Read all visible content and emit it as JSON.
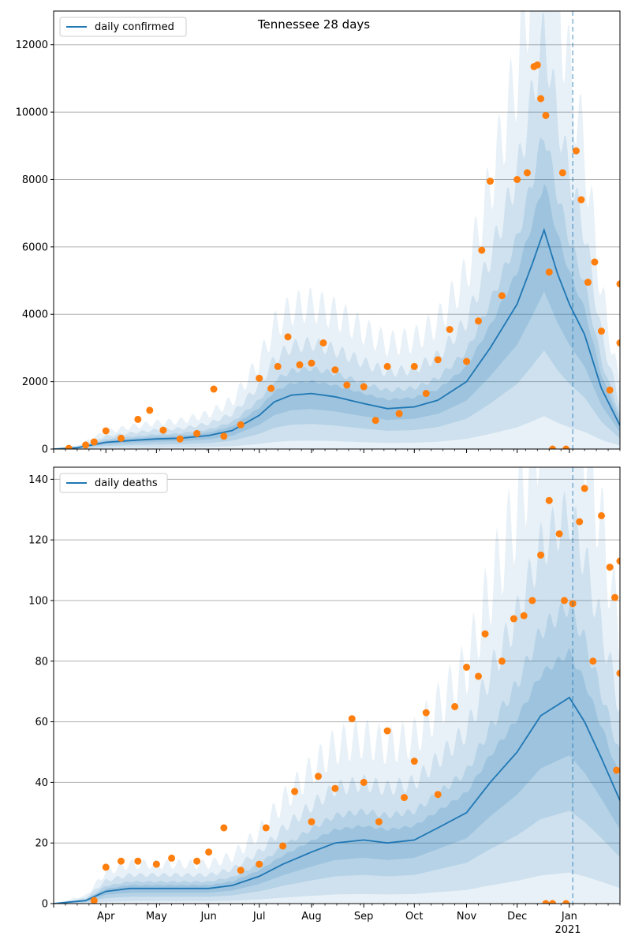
{
  "chart_data": [
    {
      "type": "line",
      "title": "Tennessee 28 days",
      "legend": {
        "position": "top-left",
        "entries": [
          "daily confirmed"
        ]
      },
      "xlabel": "",
      "ylabel": "",
      "x_range": [
        "2020-03-01",
        "2021-01-31"
      ],
      "ylim": [
        0,
        13000
      ],
      "y_ticks": [
        0,
        2000,
        4000,
        6000,
        8000,
        10000,
        12000
      ],
      "grid": "horizontal",
      "vertical_marker_date": "2021-01-03",
      "series": [
        {
          "name": "daily confirmed",
          "style": "line",
          "points": [
            [
              "2020-03-01",
              0
            ],
            [
              "2020-03-15",
              40
            ],
            [
              "2020-04-01",
              200
            ],
            [
              "2020-04-15",
              250
            ],
            [
              "2020-05-01",
              300
            ],
            [
              "2020-05-15",
              320
            ],
            [
              "2020-06-01",
              400
            ],
            [
              "2020-06-15",
              550
            ],
            [
              "2020-07-01",
              1000
            ],
            [
              "2020-07-10",
              1400
            ],
            [
              "2020-07-20",
              1600
            ],
            [
              "2020-08-01",
              1650
            ],
            [
              "2020-08-15",
              1550
            ],
            [
              "2020-09-01",
              1350
            ],
            [
              "2020-09-15",
              1200
            ],
            [
              "2020-10-01",
              1250
            ],
            [
              "2020-10-15",
              1450
            ],
            [
              "2020-11-01",
              2000
            ],
            [
              "2020-11-15",
              3000
            ],
            [
              "2020-12-01",
              4300
            ],
            [
              "2020-12-10",
              5500
            ],
            [
              "2020-12-17",
              6500
            ],
            [
              "2020-12-25",
              5200
            ],
            [
              "2021-01-01",
              4300
            ],
            [
              "2021-01-10",
              3400
            ],
            [
              "2021-01-20",
              1800
            ],
            [
              "2021-01-31",
              700
            ]
          ]
        },
        {
          "name": "observed",
          "style": "points",
          "points": [
            [
              "2020-03-10",
              20
            ],
            [
              "2020-03-20",
              120
            ],
            [
              "2020-03-25",
              210
            ],
            [
              "2020-04-01",
              540
            ],
            [
              "2020-04-10",
              320
            ],
            [
              "2020-04-20",
              880
            ],
            [
              "2020-04-27",
              1150
            ],
            [
              "2020-05-05",
              560
            ],
            [
              "2020-05-15",
              300
            ],
            [
              "2020-05-25",
              460
            ],
            [
              "2020-06-04",
              1780
            ],
            [
              "2020-06-10",
              380
            ],
            [
              "2020-06-20",
              720
            ],
            [
              "2020-07-01",
              2100
            ],
            [
              "2020-07-08",
              1800
            ],
            [
              "2020-07-12",
              2450
            ],
            [
              "2020-07-18",
              3330
            ],
            [
              "2020-07-25",
              2500
            ],
            [
              "2020-08-01",
              2550
            ],
            [
              "2020-08-08",
              3150
            ],
            [
              "2020-08-15",
              2350
            ],
            [
              "2020-08-22",
              1900
            ],
            [
              "2020-09-01",
              1850
            ],
            [
              "2020-09-08",
              850
            ],
            [
              "2020-09-15",
              2450
            ],
            [
              "2020-09-22",
              1050
            ],
            [
              "2020-10-01",
              2450
            ],
            [
              "2020-10-08",
              1650
            ],
            [
              "2020-10-15",
              2650
            ],
            [
              "2020-10-22",
              3550
            ],
            [
              "2020-11-01",
              2600
            ],
            [
              "2020-11-08",
              3800
            ],
            [
              "2020-11-10",
              5900
            ],
            [
              "2020-11-15",
              7950
            ],
            [
              "2020-11-22",
              4550
            ],
            [
              "2020-12-01",
              8000
            ],
            [
              "2020-12-07",
              8200
            ],
            [
              "2020-12-11",
              11350
            ],
            [
              "2020-12-13",
              11400
            ],
            [
              "2020-12-15",
              10400
            ],
            [
              "2020-12-18",
              9900
            ],
            [
              "2020-12-20",
              5250
            ],
            [
              "2020-12-28",
              8200
            ],
            [
              "2021-01-05",
              8850
            ],
            [
              "2021-01-08",
              7400
            ],
            [
              "2021-01-12",
              4950
            ],
            [
              "2021-01-16",
              5550
            ],
            [
              "2021-01-20",
              3500
            ],
            [
              "2021-01-25",
              1750
            ],
            [
              "2021-01-31",
              4900
            ],
            [
              "2021-01-31",
              3150
            ],
            [
              "2020-12-22",
              0
            ],
            [
              "2020-12-30",
              0
            ]
          ]
        }
      ]
    },
    {
      "type": "line",
      "title": "",
      "legend": {
        "position": "top-left",
        "entries": [
          "daily deaths"
        ]
      },
      "xlabel": "",
      "ylabel": "",
      "x_range": [
        "2020-03-01",
        "2021-01-31"
      ],
      "ylim": [
        0,
        144
      ],
      "y_ticks": [
        0,
        20,
        40,
        60,
        80,
        100,
        120,
        140
      ],
      "x_ticks": [
        {
          "date": "2020-04-01",
          "label": "Apr"
        },
        {
          "date": "2020-05-01",
          "label": "May"
        },
        {
          "date": "2020-06-01",
          "label": "Jun"
        },
        {
          "date": "2020-07-01",
          "label": "Jul"
        },
        {
          "date": "2020-08-01",
          "label": "Aug"
        },
        {
          "date": "2020-09-01",
          "label": "Sep"
        },
        {
          "date": "2020-10-01",
          "label": "Oct"
        },
        {
          "date": "2020-11-01",
          "label": "Nov"
        },
        {
          "date": "2020-12-01",
          "label": "Dec"
        },
        {
          "date": "2021-01-01",
          "label": "Jan"
        }
      ],
      "x_year_label": "2021",
      "grid": "horizontal",
      "vertical_marker_date": "2021-01-03",
      "series": [
        {
          "name": "daily deaths",
          "style": "line",
          "points": [
            [
              "2020-03-01",
              0
            ],
            [
              "2020-03-20",
              1
            ],
            [
              "2020-04-01",
              4
            ],
            [
              "2020-04-15",
              5
            ],
            [
              "2020-05-01",
              5
            ],
            [
              "2020-05-15",
              5
            ],
            [
              "2020-06-01",
              5
            ],
            [
              "2020-06-15",
              6
            ],
            [
              "2020-07-01",
              9
            ],
            [
              "2020-07-15",
              13
            ],
            [
              "2020-08-01",
              17
            ],
            [
              "2020-08-15",
              20
            ],
            [
              "2020-09-01",
              21
            ],
            [
              "2020-09-15",
              20
            ],
            [
              "2020-10-01",
              21
            ],
            [
              "2020-10-15",
              25
            ],
            [
              "2020-11-01",
              30
            ],
            [
              "2020-11-15",
              40
            ],
            [
              "2020-12-01",
              50
            ],
            [
              "2020-12-15",
              62
            ],
            [
              "2021-01-01",
              68
            ],
            [
              "2021-01-10",
              60
            ],
            [
              "2021-01-20",
              48
            ],
            [
              "2021-01-31",
              34
            ]
          ]
        },
        {
          "name": "observed",
          "style": "points",
          "points": [
            [
              "2020-03-25",
              1
            ],
            [
              "2020-04-01",
              12
            ],
            [
              "2020-04-10",
              14
            ],
            [
              "2020-04-20",
              14
            ],
            [
              "2020-05-01",
              13
            ],
            [
              "2020-05-10",
              15
            ],
            [
              "2020-05-25",
              14
            ],
            [
              "2020-06-01",
              17
            ],
            [
              "2020-06-10",
              25
            ],
            [
              "2020-06-20",
              11
            ],
            [
              "2020-07-01",
              13
            ],
            [
              "2020-07-05",
              25
            ],
            [
              "2020-07-15",
              19
            ],
            [
              "2020-07-22",
              37
            ],
            [
              "2020-08-01",
              27
            ],
            [
              "2020-08-05",
              42
            ],
            [
              "2020-08-15",
              38
            ],
            [
              "2020-08-25",
              61
            ],
            [
              "2020-09-01",
              40
            ],
            [
              "2020-09-10",
              27
            ],
            [
              "2020-09-15",
              57
            ],
            [
              "2020-09-25",
              35
            ],
            [
              "2020-10-01",
              47
            ],
            [
              "2020-10-08",
              63
            ],
            [
              "2020-10-15",
              36
            ],
            [
              "2020-10-25",
              65
            ],
            [
              "2020-11-01",
              78
            ],
            [
              "2020-11-08",
              75
            ],
            [
              "2020-11-12",
              89
            ],
            [
              "2020-11-22",
              80
            ],
            [
              "2020-11-29",
              94
            ],
            [
              "2020-12-05",
              95
            ],
            [
              "2020-12-10",
              100
            ],
            [
              "2020-12-15",
              115
            ],
            [
              "2020-12-20",
              133
            ],
            [
              "2020-12-26",
              122
            ],
            [
              "2020-12-29",
              100
            ],
            [
              "2021-01-03",
              99
            ],
            [
              "2021-01-07",
              126
            ],
            [
              "2021-01-10",
              137
            ],
            [
              "2021-01-15",
              80
            ],
            [
              "2021-01-20",
              128
            ],
            [
              "2021-01-25",
              111
            ],
            [
              "2021-01-28",
              101
            ],
            [
              "2021-01-31",
              113
            ],
            [
              "2021-01-31",
              76
            ],
            [
              "2021-01-29",
              44
            ],
            [
              "2020-12-18",
              0
            ],
            [
              "2020-12-22",
              0
            ],
            [
              "2020-12-30",
              0
            ]
          ]
        }
      ]
    }
  ],
  "colors": {
    "line": "#1f77b4",
    "points": "#ff7f0e",
    "band": "#1f77b4",
    "grid": "#b0b0b0",
    "marker": "#1f77b4"
  }
}
